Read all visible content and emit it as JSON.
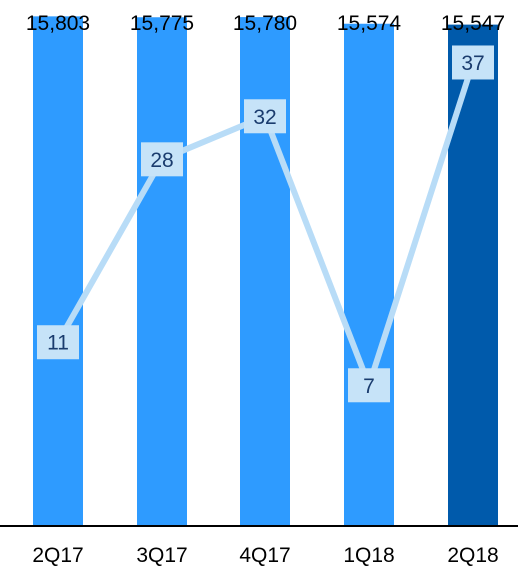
{
  "chart_data": {
    "type": "bar",
    "categories": [
      "2Q17",
      "3Q17",
      "4Q17",
      "1Q18",
      "2Q18"
    ],
    "bar_values": [
      15803,
      15775,
      15780,
      15574,
      15547
    ],
    "bar_value_labels": [
      "15,803",
      "15,775",
      "15,780",
      "15,574",
      "15,547"
    ],
    "line_values": [
      11,
      28,
      32,
      7,
      37
    ],
    "line_value_labels": [
      "11",
      "28",
      "32",
      "7",
      "37"
    ],
    "title": "",
    "xlabel": "",
    "ylabel": "",
    "legend": "none",
    "grid": false,
    "colors": {
      "bar": "#2e9bff",
      "bar_highlight": "#005aab",
      "line": "#b8dcf7",
      "point_box_fill": "#c6e3f8",
      "point_text": "#1a3c6e",
      "axis": "#000000"
    }
  }
}
